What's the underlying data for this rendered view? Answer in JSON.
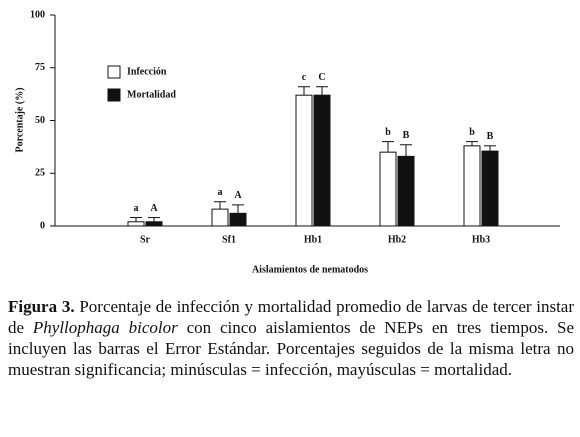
{
  "chart_data": {
    "type": "bar",
    "y_label": "Porcentaje (%)",
    "x_label": "Aislamientos de nematodos",
    "categories": [
      "Sr",
      "Sf1",
      "Hb1",
      "Hb2",
      "Hb3"
    ],
    "series": [
      {
        "name": "Infección",
        "color": "#ffffff",
        "values": [
          2,
          8,
          62,
          35,
          38
        ],
        "errors": [
          2,
          3.5,
          4,
          5,
          2
        ],
        "letters": [
          "a",
          "a",
          "c",
          "b",
          "b"
        ]
      },
      {
        "name": "Mortalidad",
        "color": "#111111",
        "values": [
          2,
          6,
          62,
          33,
          35.5
        ],
        "errors": [
          2,
          4,
          4,
          5.5,
          2.5
        ],
        "letters": [
          "A",
          "A",
          "C",
          "B",
          "B"
        ]
      }
    ],
    "ylim": [
      0,
      100
    ],
    "yticks": [
      0,
      25,
      50,
      75,
      100
    ],
    "legend": "upper-left"
  },
  "caption": {
    "label": "Figura 3.",
    "text_before": "Porcentaje de infección y mortalidad promedio de larvas de tercer instar de",
    "italic": "Phyllophaga bicolor",
    "text_after": "con cinco aislamientos de NEPs en tres tiempos. Se incluyen las barras el Error Estándar. Porcentajes seguidos de la misma letra no muestran significancia; minúsculas = infección, mayúsculas = mortalidad."
  }
}
